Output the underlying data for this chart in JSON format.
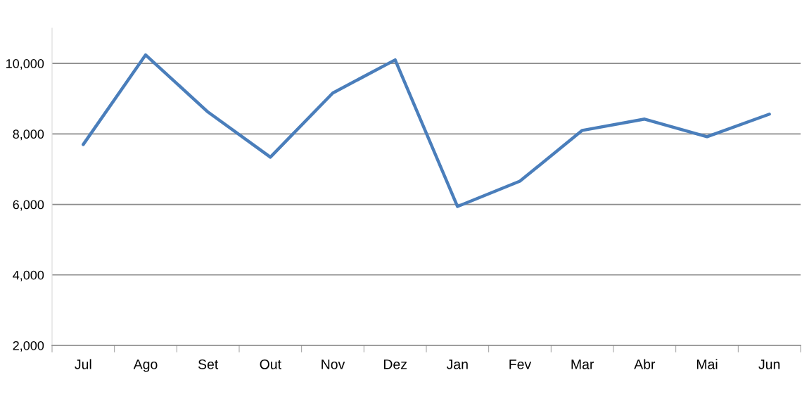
{
  "chart_data": {
    "type": "line",
    "categories": [
      "Jul",
      "Ago",
      "Set",
      "Out",
      "Nov",
      "Dez",
      "Jan",
      "Fev",
      "Mar",
      "Abr",
      "Mai",
      "Jun"
    ],
    "series": [
      {
        "color": "#4a7ebb",
        "values": [
          7700,
          10240,
          8620,
          7340,
          9160,
          10100,
          5940,
          6660,
          8100,
          8420,
          7920,
          8560
        ]
      }
    ],
    "ylim": [
      2000,
      11000
    ],
    "yticks": [
      {
        "value": 2000,
        "label": "2,000"
      },
      {
        "value": 4000,
        "label": "4,000"
      },
      {
        "value": 6000,
        "label": "6,000"
      },
      {
        "value": 8000,
        "label": "8,000"
      },
      {
        "value": 10000,
        "label": "10,000"
      }
    ],
    "grid": "y",
    "marker": "none",
    "line_style": "solid"
  }
}
